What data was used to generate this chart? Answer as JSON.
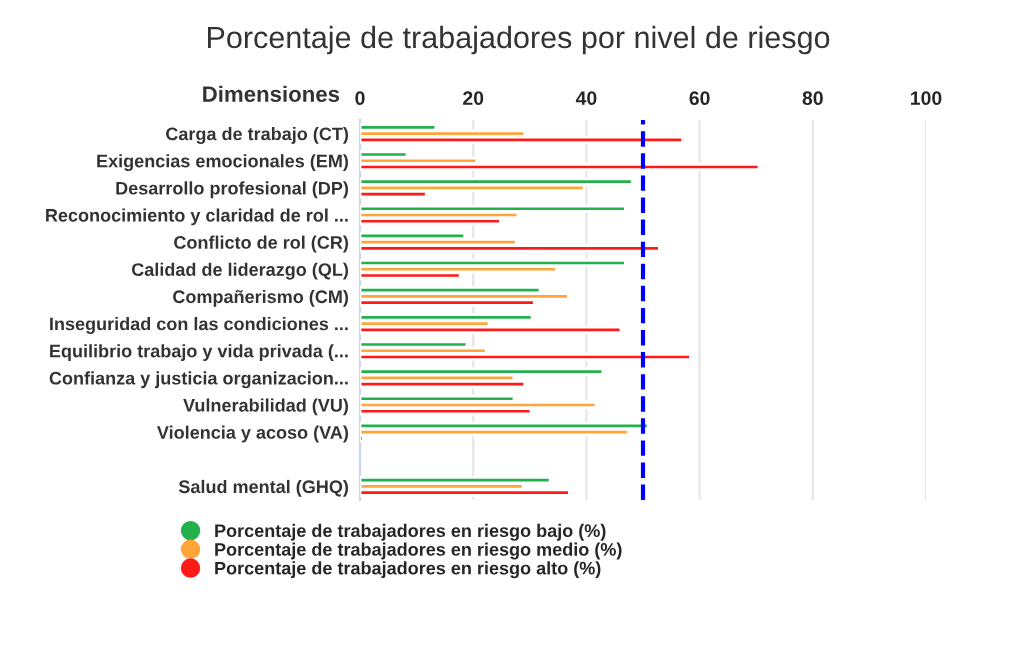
{
  "chart_data": {
    "type": "bar",
    "orientation": "horizontal",
    "title": "Porcentaje de trabajadores por nivel de riesgo",
    "ylabel": "Dimensiones",
    "categories": [
      "Carga de trabajo (CT)",
      "Exigencias emocionales (EM)",
      "Desarrollo profesional (DP)",
      "Reconocimiento y claridad de rol ...",
      "Conflicto de rol (CR)",
      "Calidad de liderazgo (QL)",
      "Compañerismo (CM)",
      "Inseguridad con las condiciones ...",
      "Equilibrio trabajo y vida privada (...",
      "Confianza y justicia organizacion...",
      "Vulnerabilidad (VU)",
      "Violencia y acoso (VA)",
      null,
      "Salud mental (GHQ)"
    ],
    "series": [
      {
        "name": "Porcentaje de trabajadores en riesgo bajo (%)",
        "color": "#22b14c",
        "values": [
          13.4,
          8.3,
          48.1,
          46.9,
          18.5,
          46.9,
          31.8,
          30.4,
          18.9,
          42.9,
          27.2,
          50.9,
          null,
          33.6
        ]
      },
      {
        "name": "Porcentaje de trabajadores en riesgo medio (%)",
        "color": "#ffa53a",
        "values": [
          29.1,
          20.6,
          39.6,
          27.9,
          27.6,
          34.7,
          36.8,
          22.8,
          22.3,
          27.2,
          41.7,
          47.4,
          null,
          28.8
        ]
      },
      {
        "name": "Porcentaje de trabajadores en riesgo alto (%)",
        "color": "#ff1a1a",
        "values": [
          57.0,
          70.5,
          11.7,
          24.8,
          52.9,
          17.7,
          30.8,
          46.1,
          58.4,
          29.1,
          30.2,
          0.6,
          null,
          37.0
        ]
      }
    ],
    "xlim": [
      0,
      100
    ],
    "xticks": [
      0,
      20,
      40,
      60,
      80,
      100
    ],
    "grid": "x",
    "legend": "bottom",
    "ref_lines": [
      {
        "axis": "x",
        "value": 50,
        "color": "#0000ff",
        "line_style": "dashed"
      }
    ]
  }
}
